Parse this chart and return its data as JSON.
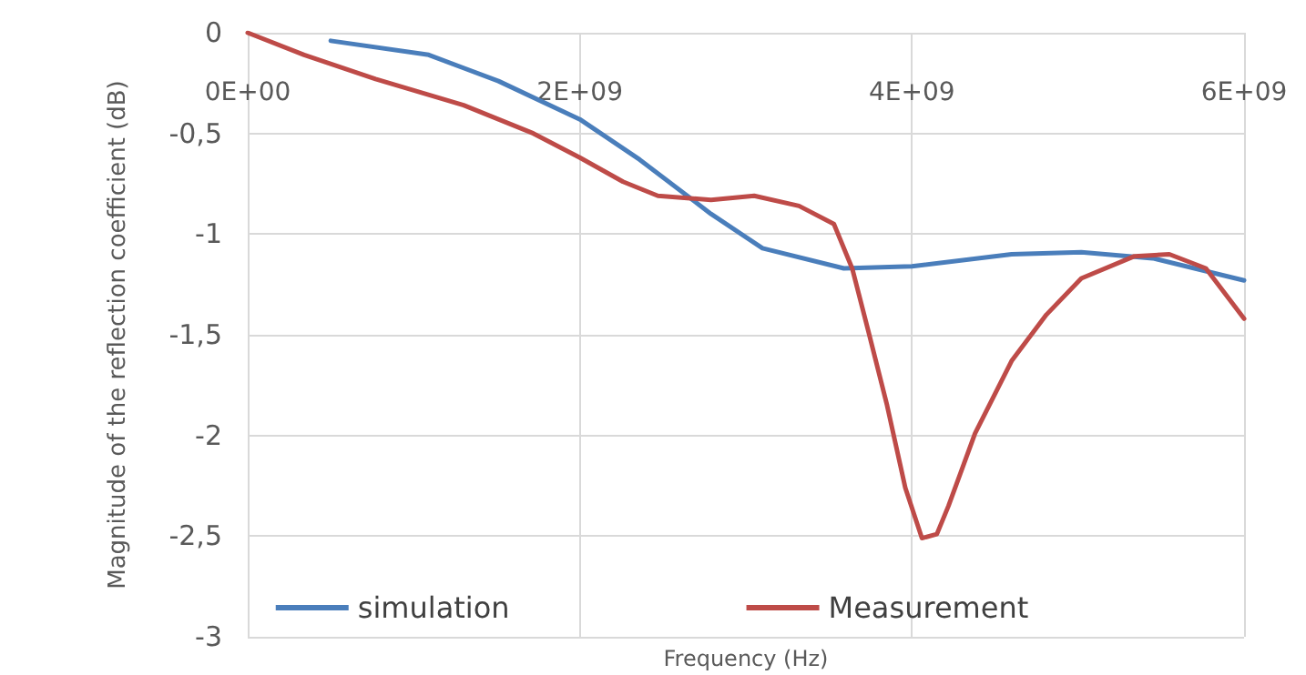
{
  "chart_data": {
    "type": "line",
    "xlabel": "Frequency (Hz)",
    "ylabel": "Magnitude of the reflection coefficient (dB)",
    "xlim": [
      0,
      6000000000
    ],
    "xticks": [
      {
        "value": 0,
        "label": "0E+00"
      },
      {
        "value": 2000000000,
        "label": "2E+09"
      },
      {
        "value": 4000000000,
        "label": "4E+09"
      },
      {
        "value": 6000000000,
        "label": "6E+09"
      }
    ],
    "ylim": [
      -3,
      0
    ],
    "yticks": [
      {
        "value": -3,
        "label": "-3"
      },
      {
        "value": -2.5,
        "label": "-2,5"
      },
      {
        "value": -2,
        "label": "-2"
      },
      {
        "value": -1.5,
        "label": "-1,5"
      },
      {
        "value": -1,
        "label": "-1"
      },
      {
        "value": -0.5,
        "label": "-0,5"
      },
      {
        "value": 0,
        "label": "0"
      }
    ],
    "grid": true,
    "legend": "bottom",
    "marker": "none",
    "line_style": "solid",
    "series": [
      {
        "name": "simulation",
        "color": "#4a7ebb",
        "x": [
          500000000,
          1090000000,
          1510000000,
          2000000000,
          2360000000,
          2790000000,
          3100000000,
          3590000000,
          4000000000,
          4600000000,
          5020000000,
          5450000000,
          6000000000
        ],
        "values": [
          -0.04,
          -0.11,
          -0.24,
          -0.43,
          -0.63,
          -0.9,
          -1.07,
          -1.17,
          -1.16,
          -1.1,
          -1.09,
          -1.12,
          -1.23
        ]
      },
      {
        "name": "Measurement",
        "color": "#be4b48",
        "x": [
          0,
          340000000,
          770000000,
          1300000000,
          1720000000,
          2000000000,
          2260000000,
          2470000000,
          2790000000,
          3050000000,
          3320000000,
          3530000000,
          3640000000,
          3740000000,
          3850000000,
          3960000000,
          4060000000,
          4150000000,
          4220000000,
          4380000000,
          4600000000,
          4810000000,
          5020000000,
          5340000000,
          5550000000,
          5770000000,
          6000000000
        ],
        "values": [
          0,
          -0.11,
          -0.23,
          -0.36,
          -0.5,
          -0.62,
          -0.74,
          -0.81,
          -0.83,
          -0.81,
          -0.86,
          -0.95,
          -1.17,
          -1.49,
          -1.85,
          -2.26,
          -2.51,
          -2.49,
          -2.35,
          -1.99,
          -1.63,
          -1.4,
          -1.22,
          -1.11,
          -1.1,
          -1.17,
          -1.42
        ]
      }
    ]
  }
}
